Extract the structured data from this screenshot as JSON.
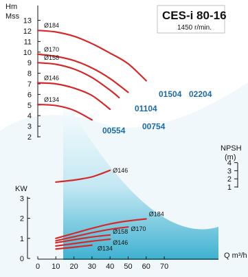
{
  "chart_data": {
    "type": "line",
    "title": "CES-i 80-16",
    "subtitle": "1450 r/min.",
    "colors": {
      "curve": "#d62828",
      "model_label": "#1a6aa6",
      "fill_top": "#eaf6fb",
      "fill_bottom": "#1aa7c9"
    },
    "x_axis": {
      "label": "Q m³/h",
      "ticks": [
        "0",
        "10",
        "20",
        "30",
        "40",
        "50",
        "60",
        "70"
      ],
      "range": [
        0,
        70
      ]
    },
    "head_axis": {
      "label_top": "Hm",
      "label_bottom": "Mss",
      "ticks": [
        "2",
        "3",
        "4",
        "5",
        "6",
        "7",
        "8",
        "9",
        "10",
        "11",
        "12",
        "13"
      ],
      "range": [
        2,
        13
      ]
    },
    "npsh_axis": {
      "label": "NPSH",
      "unit": "(m)",
      "ticks": [
        "1",
        "2",
        "3",
        "4"
      ],
      "range": [
        0.5,
        4.5
      ]
    },
    "kw_axis": {
      "label": "KW",
      "ticks": [
        "0",
        "1",
        "2",
        "3"
      ],
      "range": [
        0,
        3
      ]
    },
    "head_curves": [
      {
        "name": "Ø184",
        "x": [
          0,
          10,
          20,
          30,
          40,
          50,
          60
        ],
        "y": [
          12.05,
          11.9,
          11.5,
          10.8,
          9.9,
          8.9,
          7.3
        ]
      },
      {
        "name": "Ø170",
        "x": [
          0,
          10,
          20,
          30,
          40,
          50
        ],
        "y": [
          9.8,
          9.6,
          9.2,
          8.5,
          7.5,
          6.2
        ]
      },
      {
        "name": "Ø158",
        "x": [
          0,
          10,
          20,
          30,
          40,
          45
        ],
        "y": [
          9.0,
          8.85,
          8.4,
          7.6,
          6.4,
          5.7
        ]
      },
      {
        "name": "Ø146",
        "x": [
          0,
          10,
          20,
          30,
          40
        ],
        "y": [
          7.1,
          7.0,
          6.6,
          5.9,
          4.6
        ]
      },
      {
        "name": "Ø134",
        "x": [
          0,
          10,
          20,
          30
        ],
        "y": [
          5.05,
          4.95,
          4.5,
          3.6
        ]
      }
    ],
    "model_labels": [
      "01504",
      "02204",
      "01104",
      "00754",
      "00554"
    ],
    "npsh_curves": [
      {
        "name": "Ø146",
        "x": [
          10,
          20,
          30,
          40
        ],
        "y": [
          1.6,
          1.85,
          2.25,
          3.05
        ]
      }
    ],
    "power_curves": [
      {
        "name": "Ø184",
        "x": [
          10,
          20,
          30,
          40,
          50,
          60
        ],
        "y": [
          1.0,
          1.25,
          1.5,
          1.72,
          1.87,
          1.97
        ]
      },
      {
        "name": "Ø170",
        "x": [
          10,
          20,
          30,
          40,
          50
        ],
        "y": [
          0.88,
          1.08,
          1.28,
          1.45,
          1.57
        ]
      },
      {
        "name": "Ø158",
        "x": [
          10,
          20,
          30,
          40
        ],
        "y": [
          0.78,
          0.93,
          1.07,
          1.17
        ]
      },
      {
        "name": "Ø146",
        "x": [
          10,
          20,
          30,
          40
        ],
        "y": [
          0.62,
          0.74,
          0.86,
          0.96
        ]
      },
      {
        "name": "Ø134",
        "x": [
          10,
          20,
          30
        ],
        "y": [
          0.47,
          0.56,
          0.66
        ]
      }
    ]
  }
}
